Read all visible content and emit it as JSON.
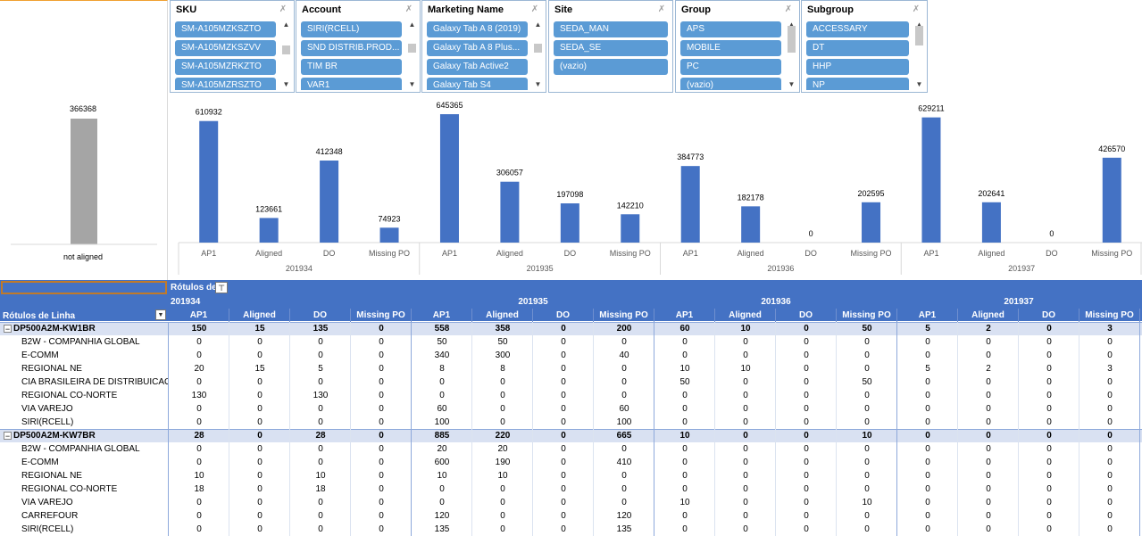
{
  "slicers": [
    {
      "title": "SKU",
      "items": [
        "SM-A105MZKSZTO",
        "SM-A105MZKSZVV",
        "SM-A105MZRKZTO",
        "SM-A105MZRSZTO"
      ],
      "scroll": true
    },
    {
      "title": "Account",
      "items": [
        "SIRI(RCELL)",
        "SND DISTRIB.PROD...",
        "TIM BR",
        "VAR1"
      ],
      "scroll": true
    },
    {
      "title": "Marketing Name",
      "items": [
        "Galaxy Tab A 8 (2019)",
        "Galaxy Tab A 8 Plus...",
        "Galaxy Tab Active2",
        "Galaxy Tab S4"
      ],
      "scroll": true
    },
    {
      "title": "Site",
      "items": [
        "SEDA_MAN",
        "SEDA_SE",
        "(vazio)"
      ],
      "scroll": false
    },
    {
      "title": "Group",
      "items": [
        "APS",
        "MOBILE",
        "PC",
        "(vazio)"
      ],
      "scroll": true
    },
    {
      "title": "Subgroup",
      "items": [
        "ACCESSARY",
        "DT",
        "HHP",
        "NP"
      ],
      "scroll": true
    }
  ],
  "left_chart": {
    "value": "366368",
    "label": "not aligned",
    "bar_color": "#a5a5a5"
  },
  "chart_data": {
    "type": "bar",
    "bar_color": "#4472c4",
    "groups": [
      {
        "name": "201934",
        "categories": [
          "AP1",
          "Aligned",
          "DO",
          "Missing PO"
        ],
        "values": [
          610932,
          123661,
          412348,
          74923
        ]
      },
      {
        "name": "201935",
        "categories": [
          "AP1",
          "Aligned",
          "DO",
          "Missing PO"
        ],
        "values": [
          645365,
          306057,
          197098,
          142210
        ]
      },
      {
        "name": "201936",
        "categories": [
          "AP1",
          "Aligned",
          "DO",
          "Missing PO"
        ],
        "values": [
          384773,
          182178,
          0,
          202595
        ]
      },
      {
        "name": "201937",
        "categories": [
          "AP1",
          "Aligned",
          "DO",
          "Missing PO"
        ],
        "values": [
          629211,
          202641,
          0,
          426570
        ]
      }
    ]
  },
  "pivot": {
    "col_labels_title": "Rótulos de",
    "row_labels_title": "Rótulos de Linha",
    "weeks": [
      "201934",
      "201935",
      "201936",
      "201937"
    ],
    "measures": [
      "AP1",
      "Aligned",
      "DO",
      "Missing PO"
    ],
    "groups": [
      {
        "name": "DP500A2M-KW1BR",
        "totals": [
          "150",
          "15",
          "135",
          "0",
          "558",
          "358",
          "0",
          "200",
          "60",
          "10",
          "0",
          "50",
          "5",
          "2",
          "0",
          "3"
        ],
        "rows": [
          {
            "name": "B2W - COMPANHIA GLOBAL",
            "values": [
              "0",
              "0",
              "0",
              "0",
              "50",
              "50",
              "0",
              "0",
              "0",
              "0",
              "0",
              "0",
              "0",
              "0",
              "0",
              "0"
            ]
          },
          {
            "name": "E-COMM",
            "values": [
              "0",
              "0",
              "0",
              "0",
              "340",
              "300",
              "0",
              "40",
              "0",
              "0",
              "0",
              "0",
              "0",
              "0",
              "0",
              "0"
            ]
          },
          {
            "name": "REGIONAL NE",
            "values": [
              "20",
              "15",
              "5",
              "0",
              "8",
              "8",
              "0",
              "0",
              "10",
              "10",
              "0",
              "0",
              "5",
              "2",
              "0",
              "3"
            ]
          },
          {
            "name": "CIA BRASILEIRA DE DISTRIBUICAO",
            "values": [
              "0",
              "0",
              "0",
              "0",
              "0",
              "0",
              "0",
              "0",
              "50",
              "0",
              "0",
              "50",
              "0",
              "0",
              "0",
              "0"
            ]
          },
          {
            "name": "REGIONAL CO-NORTE",
            "values": [
              "130",
              "0",
              "130",
              "0",
              "0",
              "0",
              "0",
              "0",
              "0",
              "0",
              "0",
              "0",
              "0",
              "0",
              "0",
              "0"
            ]
          },
          {
            "name": "VIA VAREJO",
            "values": [
              "0",
              "0",
              "0",
              "0",
              "60",
              "0",
              "0",
              "60",
              "0",
              "0",
              "0",
              "0",
              "0",
              "0",
              "0",
              "0"
            ]
          },
          {
            "name": "SIRI(RCELL)",
            "values": [
              "0",
              "0",
              "0",
              "0",
              "100",
              "0",
              "0",
              "100",
              "0",
              "0",
              "0",
              "0",
              "0",
              "0",
              "0",
              "0"
            ]
          }
        ]
      },
      {
        "name": "DP500A2M-KW7BR",
        "totals": [
          "28",
          "0",
          "28",
          "0",
          "885",
          "220",
          "0",
          "665",
          "10",
          "0",
          "0",
          "10",
          "0",
          "0",
          "0",
          "0"
        ],
        "rows": [
          {
            "name": "B2W - COMPANHIA GLOBAL",
            "values": [
              "0",
              "0",
              "0",
              "0",
              "20",
              "20",
              "0",
              "0",
              "0",
              "0",
              "0",
              "0",
              "0",
              "0",
              "0",
              "0"
            ]
          },
          {
            "name": "E-COMM",
            "values": [
              "0",
              "0",
              "0",
              "0",
              "600",
              "190",
              "0",
              "410",
              "0",
              "0",
              "0",
              "0",
              "0",
              "0",
              "0",
              "0"
            ]
          },
          {
            "name": "REGIONAL NE",
            "values": [
              "10",
              "0",
              "10",
              "0",
              "10",
              "10",
              "0",
              "0",
              "0",
              "0",
              "0",
              "0",
              "0",
              "0",
              "0",
              "0"
            ]
          },
          {
            "name": "REGIONAL CO-NORTE",
            "values": [
              "18",
              "0",
              "18",
              "0",
              "0",
              "0",
              "0",
              "0",
              "0",
              "0",
              "0",
              "0",
              "0",
              "0",
              "0",
              "0"
            ]
          },
          {
            "name": "VIA VAREJO",
            "values": [
              "0",
              "0",
              "0",
              "0",
              "0",
              "0",
              "0",
              "0",
              "10",
              "0",
              "0",
              "10",
              "0",
              "0",
              "0",
              "0"
            ]
          },
          {
            "name": "CARREFOUR",
            "values": [
              "0",
              "0",
              "0",
              "0",
              "120",
              "0",
              "0",
              "120",
              "0",
              "0",
              "0",
              "0",
              "0",
              "0",
              "0",
              "0"
            ]
          },
          {
            "name": "SIRI(RCELL)",
            "values": [
              "0",
              "0",
              "0",
              "0",
              "135",
              "0",
              "0",
              "135",
              "0",
              "0",
              "0",
              "0",
              "0",
              "0",
              "0",
              "0"
            ]
          }
        ]
      }
    ]
  }
}
